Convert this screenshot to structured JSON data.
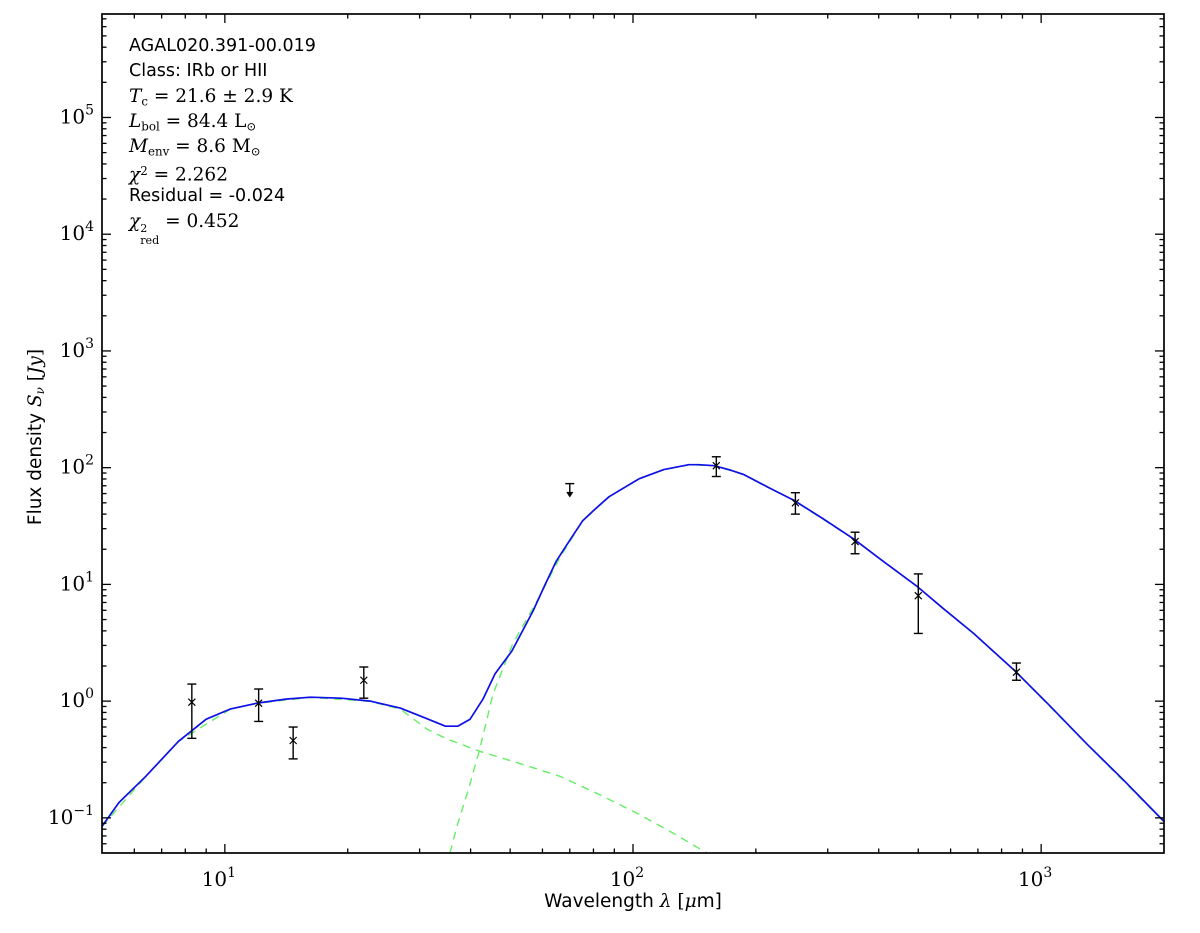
{
  "figure": {
    "annotation": {
      "source_name": "AGAL020.391-00.019",
      "class_line": "Class: IRb or HII",
      "tc": {
        "sym": "T",
        "sub": "c",
        "val": " = 21.6 ± 2.9 K"
      },
      "lbol": {
        "sym": "L",
        "sub": "bol",
        "val": " = 84.4 L",
        "unit_sub": "⊙"
      },
      "menv": {
        "sym": "M",
        "sub": "env",
        "val": " = 8.6 M",
        "unit_sub": "⊙"
      },
      "chi2": {
        "sym": "χ",
        "sup": "2",
        "val": " = 2.262"
      },
      "residual": "Residual = -0.024",
      "chi2red": {
        "sym": "χ",
        "sup": "2",
        "sub": "red",
        "val": " = 0.452"
      }
    },
    "xlabel": {
      "prefix": "Wavelength ",
      "lambda": "λ",
      "open": " [",
      "mu": "μ",
      "suffix": "m]"
    },
    "ylabel": {
      "prefix": "Flux density ",
      "sym": "S",
      "sub": "ν",
      "open": " [",
      "unit": "Jy",
      "close": "]"
    }
  },
  "chart_data": {
    "type": "line",
    "title": "",
    "xlabel": "Wavelength λ [μm]",
    "ylabel": "Flux density S_ν [Jy]",
    "x_scale": "log",
    "y_scale": "log",
    "xlim": [
      5,
      2000
    ],
    "ylim": [
      0.05,
      770000
    ],
    "x_ticks": [
      10,
      100,
      1000
    ],
    "y_ticks": [
      0.1,
      1,
      10,
      100,
      1000,
      10000,
      100000
    ],
    "grid": false,
    "legend": "none",
    "colors": {
      "model": "#0f0fe8",
      "components": "#66ee66",
      "data": "#000000"
    },
    "fit_parameters": {
      "source": "AGAL020.391-00.019",
      "class": "IRb or HII",
      "T_c_K": "21.6 ± 2.9",
      "L_bol_Lsun": 84.4,
      "M_env_Msun": 8.6,
      "chi2": 2.262,
      "residual": -0.024,
      "chi2_red": 0.452
    },
    "series": [
      {
        "name": "warm-component-curve",
        "style": "dashed",
        "color": "#66ee66",
        "width": 1.4,
        "points": [
          [
            5.0,
            0.0843
          ],
          [
            6.4,
            0.226
          ],
          [
            7.7,
            0.452
          ],
          [
            10.3,
            0.852
          ],
          [
            12.0,
            0.958
          ],
          [
            16.2,
            1.077
          ],
          [
            22.7,
            0.995
          ],
          [
            26.9,
            0.855
          ],
          [
            31.3,
            0.575
          ],
          [
            34.7,
            0.48
          ],
          [
            42.1,
            0.372
          ],
          [
            52.5,
            0.294
          ],
          [
            66.2,
            0.227
          ],
          [
            82.6,
            0.159
          ],
          [
            103.6,
            0.107
          ],
          [
            126.0,
            0.0733
          ],
          [
            151.6,
            0.05
          ]
        ]
      },
      {
        "name": "cold-component-curve",
        "style": "dashed",
        "color": "#66ee66",
        "width": 1.4,
        "points": [
          [
            35.6,
            0.05
          ],
          [
            37.2,
            0.089
          ],
          [
            39.5,
            0.175
          ],
          [
            42.1,
            0.387
          ],
          [
            45.4,
            1.15
          ],
          [
            50.7,
            3.08
          ],
          [
            58.2,
            7.22
          ],
          [
            66.2,
            17.0
          ],
          [
            75.3,
            35.0
          ],
          [
            87.4,
            56.3
          ],
          [
            103.6,
            80.4
          ],
          [
            119,
            96.1
          ],
          [
            137,
            105.9
          ],
          [
            158,
            103.9
          ],
          [
            187,
            87.2
          ],
          [
            248,
            52.3
          ],
          [
            347,
            24.5
          ],
          [
            495,
            9.65
          ],
          [
            682,
            3.8
          ],
          [
            864,
            1.8
          ],
          [
            1297,
            0.425
          ],
          [
            2000,
            0.0926
          ]
        ]
      },
      {
        "name": "model-fit-curve",
        "style": "solid",
        "color": "#0f0fe8",
        "width": 1.7,
        "points": [
          [
            5.0,
            0.0845
          ],
          [
            5.5,
            0.135
          ],
          [
            6.4,
            0.227
          ],
          [
            7.7,
            0.453
          ],
          [
            9.0,
            0.7
          ],
          [
            10.3,
            0.854
          ],
          [
            12.0,
            0.961
          ],
          [
            14.1,
            1.04
          ],
          [
            16.2,
            1.08
          ],
          [
            19.3,
            1.06
          ],
          [
            22.7,
            1.0
          ],
          [
            26.9,
            0.871
          ],
          [
            31.0,
            0.715
          ],
          [
            34.7,
            0.61
          ],
          [
            37.2,
            0.61
          ],
          [
            39.9,
            0.7
          ],
          [
            42.9,
            1.04
          ],
          [
            45.9,
            1.71
          ],
          [
            50.5,
            2.69
          ],
          [
            56.9,
            5.93
          ],
          [
            60.7,
            9.7
          ],
          [
            64.9,
            15.9
          ],
          [
            69.9,
            23.7
          ],
          [
            75.3,
            35.1
          ],
          [
            81.0,
            44.6
          ],
          [
            87.4,
            56.4
          ],
          [
            103.6,
            80.5
          ],
          [
            119,
            96.2
          ],
          [
            137,
            106
          ],
          [
            145,
            106
          ],
          [
            158,
            104
          ],
          [
            172,
            96
          ],
          [
            187,
            87.3
          ],
          [
            215,
            67.5
          ],
          [
            248,
            52.4
          ],
          [
            292,
            36.6
          ],
          [
            347,
            24.6
          ],
          [
            409,
            15.9
          ],
          [
            495,
            9.7
          ],
          [
            573,
            6.3
          ],
          [
            682,
            3.83
          ],
          [
            864,
            1.81
          ],
          [
            1042,
            0.94
          ],
          [
            1297,
            0.427
          ],
          [
            1585,
            0.214
          ],
          [
            2000,
            0.093
          ]
        ]
      }
    ],
    "data_points": [
      {
        "wavelength_um": 8.3,
        "flux_jy": 0.98,
        "err_lo_jy": 0.48,
        "err_hi_jy": 1.4
      },
      {
        "wavelength_um": 12.1,
        "flux_jy": 0.96,
        "err_lo_jy": 0.67,
        "err_hi_jy": 1.27
      },
      {
        "wavelength_um": 14.7,
        "flux_jy": 0.46,
        "err_lo_jy": 0.32,
        "err_hi_jy": 0.6
      },
      {
        "wavelength_um": 21.9,
        "flux_jy": 1.51,
        "err_lo_jy": 1.06,
        "err_hi_jy": 1.96
      },
      {
        "wavelength_um": 70,
        "flux_jy": 73,
        "upper_limit": true,
        "arrow_tip_jy": 57
      },
      {
        "wavelength_um": 160,
        "flux_jy": 104,
        "err_lo_jy": 84,
        "err_hi_jy": 124
      },
      {
        "wavelength_um": 250,
        "flux_jy": 50,
        "err_lo_jy": 40,
        "err_hi_jy": 61
      },
      {
        "wavelength_um": 350,
        "flux_jy": 23.3,
        "err_lo_jy": 18.3,
        "err_hi_jy": 28
      },
      {
        "wavelength_um": 500,
        "flux_jy": 8.0,
        "err_lo_jy": 3.8,
        "err_hi_jy": 12.3
      },
      {
        "wavelength_um": 870,
        "flux_jy": 1.77,
        "err_lo_jy": 1.51,
        "err_hi_jy": 2.12
      }
    ]
  }
}
